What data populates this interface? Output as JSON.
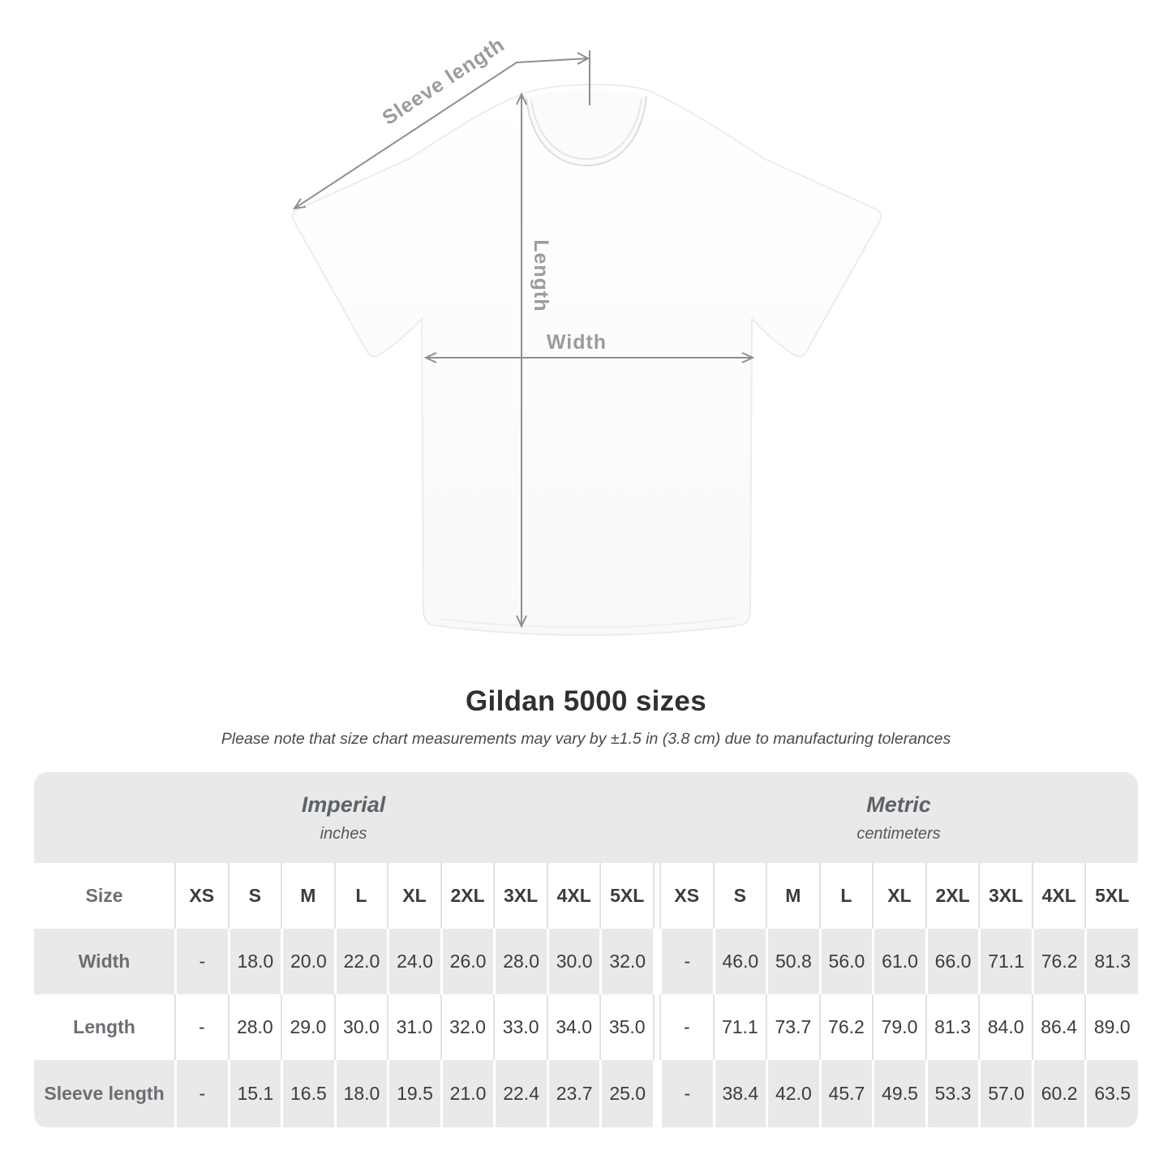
{
  "illustration": {
    "sleeve_length_label": "Sleeve length",
    "length_label": "Length",
    "width_label": "Width"
  },
  "heading": {
    "title": "Gildan 5000 sizes",
    "subtitle": "Please note that size chart measurements may vary by ±1.5 in (3.8 cm) due to manufacturing tolerances"
  },
  "table": {
    "unit_groups": [
      {
        "label": "Imperial",
        "sublabel": "inches"
      },
      {
        "label": "Metric",
        "sublabel": "centimeters"
      }
    ],
    "size_header": "Size",
    "sizes": [
      "XS",
      "S",
      "M",
      "L",
      "XL",
      "2XL",
      "3XL",
      "4XL",
      "5XL"
    ],
    "rows": [
      {
        "label": "Width",
        "imperial": [
          "-",
          "18.0",
          "20.0",
          "22.0",
          "24.0",
          "26.0",
          "28.0",
          "30.0",
          "32.0"
        ],
        "metric": [
          "-",
          "46.0",
          "50.8",
          "56.0",
          "61.0",
          "66.0",
          "71.1",
          "76.2",
          "81.3"
        ]
      },
      {
        "label": "Length",
        "imperial": [
          "-",
          "28.0",
          "29.0",
          "30.0",
          "31.0",
          "32.0",
          "33.0",
          "34.0",
          "35.0"
        ],
        "metric": [
          "-",
          "71.1",
          "73.7",
          "76.2",
          "79.0",
          "81.3",
          "84.0",
          "86.4",
          "89.0"
        ]
      },
      {
        "label": "Sleeve length",
        "imperial": [
          "-",
          "15.1",
          "16.5",
          "18.0",
          "19.5",
          "21.0",
          "22.4",
          "23.7",
          "25.0"
        ],
        "metric": [
          "-",
          "38.4",
          "42.0",
          "45.7",
          "49.5",
          "53.3",
          "57.0",
          "60.2",
          "63.5"
        ]
      }
    ]
  },
  "colors": {
    "row_gray": "#e9e9e9",
    "separator": "#e2e2e2",
    "dimension_line": "#8e8e8e",
    "dimension_label": "#9b9b9b",
    "number_text": "#3c3c3c",
    "label_text": "#6b6f73",
    "title_text": "#303030"
  }
}
